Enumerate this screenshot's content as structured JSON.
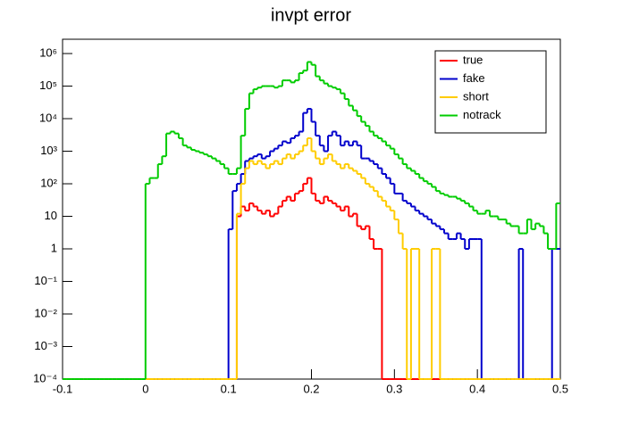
{
  "chart_data": {
    "type": "histogram-step",
    "title": "invpt error",
    "log_y": true,
    "xlim": [
      -0.1,
      0.5
    ],
    "ylim": [
      0.0001,
      2750000
    ],
    "xticks": [
      -0.1,
      0,
      0.1,
      0.2,
      0.3,
      0.4,
      0.5
    ],
    "yticks": [
      {
        "value": 0.0001,
        "label": "10⁻⁴"
      },
      {
        "value": 0.001,
        "label": "10⁻³"
      },
      {
        "value": 0.01,
        "label": "10⁻²"
      },
      {
        "value": 0.1,
        "label": "10⁻¹"
      },
      1,
      10,
      {
        "value": 100,
        "label": "10²"
      },
      {
        "value": 1000,
        "label": "10³"
      },
      {
        "value": 10000,
        "label": "10⁴"
      },
      {
        "value": 100000,
        "label": "10⁵"
      },
      {
        "value": 1000000,
        "label": "10⁶"
      }
    ],
    "legend": "top right",
    "bins": [
      -0.1,
      -0.095,
      -0.09,
      -0.085,
      -0.08,
      -0.075,
      -0.07,
      -0.065,
      -0.06,
      -0.055,
      -0.05,
      -0.045,
      -0.04,
      -0.035,
      -0.03,
      -0.025,
      -0.02,
      -0.015,
      -0.01,
      -0.005,
      0,
      0.005,
      0.01,
      0.015,
      0.02,
      0.025,
      0.03,
      0.035,
      0.04,
      0.045,
      0.05,
      0.055,
      0.06,
      0.065,
      0.07,
      0.075,
      0.08,
      0.085,
      0.09,
      0.095,
      0.1,
      0.105,
      0.11,
      0.115,
      0.12,
      0.125,
      0.13,
      0.135,
      0.14,
      0.145,
      0.15,
      0.155,
      0.16,
      0.165,
      0.17,
      0.175,
      0.18,
      0.185,
      0.19,
      0.195,
      0.2,
      0.205,
      0.21,
      0.215,
      0.22,
      0.225,
      0.23,
      0.235,
      0.24,
      0.245,
      0.25,
      0.255,
      0.26,
      0.265,
      0.27,
      0.275,
      0.28,
      0.285,
      0.29,
      0.295,
      0.3,
      0.305,
      0.31,
      0.315,
      0.32,
      0.325,
      0.33,
      0.335,
      0.34,
      0.345,
      0.35,
      0.355,
      0.36,
      0.365,
      0.37,
      0.375,
      0.38,
      0.385,
      0.39,
      0.395,
      0.4,
      0.405,
      0.41,
      0.415,
      0.42,
      0.425,
      0.43,
      0.435,
      0.44,
      0.445,
      0.45,
      0.455,
      0.46,
      0.465,
      0.47,
      0.475,
      0.48,
      0.485,
      0.49,
      0.495,
      0.5
    ],
    "series": [
      {
        "name": "true",
        "color": "#ff0000",
        "values": [
          0,
          0,
          0,
          0,
          0,
          0,
          0,
          0,
          0,
          0,
          0,
          0,
          0,
          0,
          0,
          0,
          0,
          0,
          0,
          0,
          0,
          0,
          0,
          0,
          0,
          0,
          0,
          0,
          0,
          0,
          0,
          0,
          0,
          0,
          0,
          0,
          0,
          0,
          0,
          0,
          0,
          0,
          10,
          20,
          15,
          25,
          20,
          15,
          12,
          15,
          10,
          12,
          20,
          30,
          40,
          30,
          50,
          60,
          100,
          150,
          50,
          30,
          25,
          40,
          30,
          25,
          20,
          15,
          20,
          10,
          12,
          5,
          4,
          5,
          2,
          1,
          1,
          0,
          0,
          0,
          0,
          0,
          0,
          0,
          0,
          0,
          0,
          0,
          0,
          0,
          0,
          0,
          0,
          0,
          0,
          0,
          0,
          0,
          0,
          0,
          0,
          0,
          0,
          0,
          0,
          0,
          0,
          0,
          0,
          0,
          0,
          0,
          0,
          0,
          0,
          0,
          0,
          0,
          0,
          0
        ]
      },
      {
        "name": "fake",
        "color": "#0000cc",
        "values": [
          0,
          0,
          0,
          0,
          0,
          0,
          0,
          0,
          0,
          0,
          0,
          0,
          0,
          0,
          0,
          0,
          0,
          0,
          0,
          0,
          0,
          0,
          0,
          0,
          0,
          0,
          0,
          0,
          0,
          0,
          0,
          0,
          0,
          0,
          0,
          0,
          0,
          0,
          0,
          0,
          4,
          60,
          100,
          200,
          500,
          600,
          700,
          800,
          600,
          700,
          1000,
          1200,
          1500,
          2000,
          1800,
          2500,
          3000,
          4000,
          15000,
          20000,
          8000,
          3000,
          1500,
          1000,
          3000,
          4000,
          3000,
          1500,
          2000,
          1500,
          2000,
          1500,
          600,
          600,
          500,
          400,
          300,
          200,
          150,
          100,
          50,
          50,
          30,
          25,
          20,
          15,
          12,
          10,
          8,
          6,
          5,
          4,
          3,
          2,
          2,
          3,
          2,
          1,
          2,
          2,
          2,
          0,
          0,
          0,
          0,
          0,
          0,
          0,
          0,
          0,
          1,
          0,
          0,
          0,
          0,
          0,
          0,
          0,
          1,
          1
        ]
      },
      {
        "name": "short",
        "color": "#ffcc00",
        "values": [
          0,
          0,
          0,
          0,
          0,
          0,
          0,
          0,
          0,
          0,
          0,
          0,
          0,
          0,
          0,
          0,
          0,
          0,
          0,
          0,
          0,
          0,
          0,
          0,
          0,
          0,
          0,
          0,
          0,
          0,
          0,
          0,
          0,
          0,
          0,
          0,
          0,
          0,
          0,
          0,
          0,
          0,
          12,
          100,
          300,
          500,
          400,
          500,
          400,
          300,
          400,
          500,
          400,
          600,
          800,
          600,
          800,
          1000,
          1500,
          2500,
          1000,
          600,
          400,
          600,
          800,
          500,
          400,
          300,
          400,
          300,
          250,
          200,
          150,
          100,
          80,
          60,
          40,
          30,
          20,
          15,
          8,
          3,
          1,
          0,
          1,
          1,
          0,
          0,
          0,
          1,
          1,
          0,
          0,
          0,
          0,
          0,
          0,
          0,
          0,
          0,
          0,
          0,
          0,
          0,
          0,
          0,
          0,
          0,
          0,
          0,
          0,
          0,
          0,
          0,
          0,
          0,
          0,
          0,
          0,
          0
        ]
      },
      {
        "name": "notrack",
        "color": "#00cc00",
        "values": [
          0,
          0,
          0,
          0,
          0,
          0,
          0,
          0,
          0,
          0,
          0,
          0,
          0,
          0,
          0,
          0,
          0,
          0,
          0,
          0,
          100,
          150,
          150,
          400,
          700,
          3500,
          4000,
          3500,
          2500,
          1500,
          1300,
          1100,
          1000,
          900,
          800,
          700,
          600,
          500,
          400,
          300,
          200,
          200,
          300,
          3000,
          20000,
          60000,
          80000,
          90000,
          100000,
          100000,
          100000,
          90000,
          100000,
          150000,
          150000,
          130000,
          150000,
          250000,
          300000,
          550000,
          450000,
          200000,
          150000,
          120000,
          100000,
          90000,
          80000,
          60000,
          40000,
          25000,
          18000,
          12000,
          8000,
          6000,
          4000,
          3000,
          2500,
          2000,
          1500,
          1200,
          800,
          600,
          400,
          300,
          250,
          200,
          150,
          120,
          100,
          80,
          60,
          50,
          45,
          40,
          40,
          35,
          30,
          25,
          20,
          15,
          12,
          12,
          15,
          10,
          10,
          8,
          8,
          6,
          5,
          5,
          3,
          3,
          8,
          4,
          6,
          5,
          3,
          1,
          1,
          25
        ]
      }
    ]
  }
}
